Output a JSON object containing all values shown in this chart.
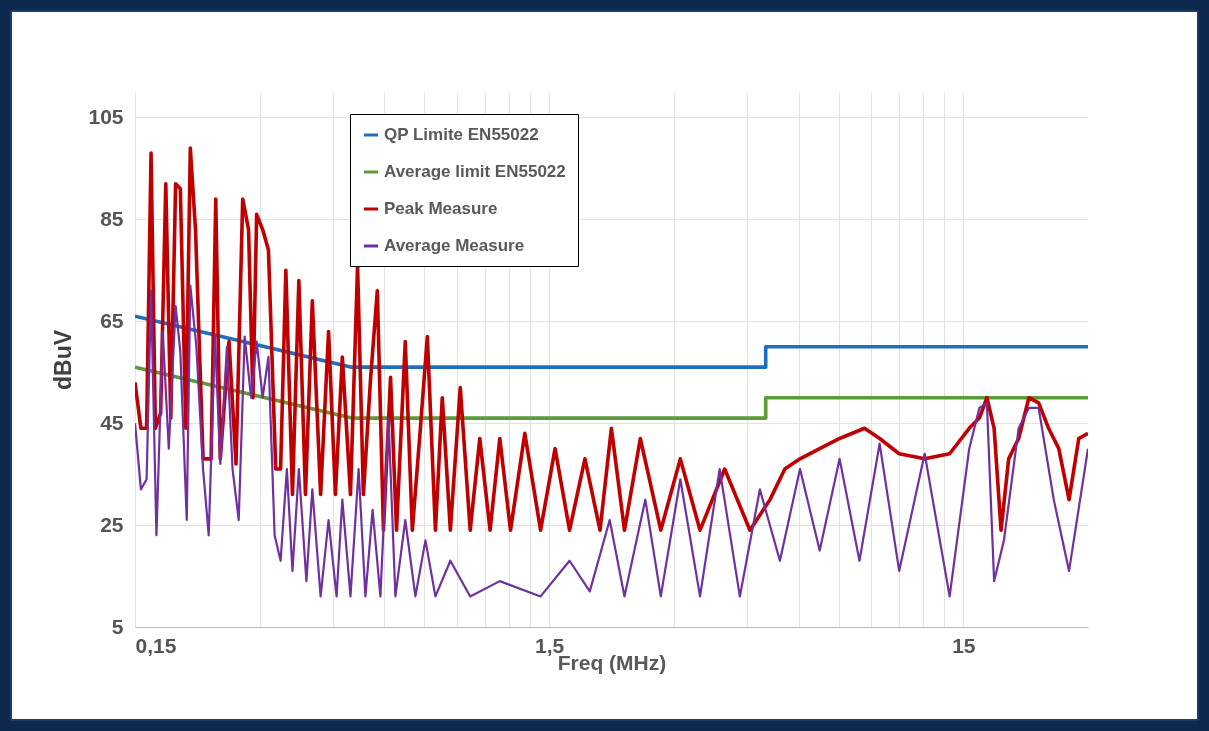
{
  "chart_data": {
    "type": "line",
    "xlabel": "Freq (MHz)",
    "ylabel": "dBuV",
    "log": "x",
    "grid": true,
    "legend": "top",
    "marker": "none",
    "line_style": "solid",
    "xlim": [
      0.15,
      30
    ],
    "ylim": [
      5,
      110
    ],
    "xticks": [
      {
        "value": 0.15,
        "label": "0,15"
      },
      {
        "value": 0.3,
        "label": null
      },
      {
        "value": 0.45,
        "label": null
      },
      {
        "value": 0.6,
        "label": null
      },
      {
        "value": 0.75,
        "label": null
      },
      {
        "value": 0.9,
        "label": null
      },
      {
        "value": 1.05,
        "label": null
      },
      {
        "value": 1.2,
        "label": null
      },
      {
        "value": 1.35,
        "label": null
      },
      {
        "value": 1.5,
        "label": "1,5"
      },
      {
        "value": 3,
        "label": null
      },
      {
        "value": 4.5,
        "label": null
      },
      {
        "value": 6,
        "label": null
      },
      {
        "value": 7.5,
        "label": null
      },
      {
        "value": 9,
        "label": null
      },
      {
        "value": 10.5,
        "label": null
      },
      {
        "value": 12,
        "label": null
      },
      {
        "value": 13.5,
        "label": null
      },
      15
    ],
    "yticks": [
      5,
      25,
      45,
      65,
      85,
      105
    ],
    "series": [
      {
        "name": "QP Limite EN55022",
        "color": "#1f6fbf",
        "x": [
          0.15,
          0.5,
          5,
          5,
          30
        ],
        "values": [
          66,
          56,
          56,
          60,
          60
        ]
      },
      {
        "name": "Average limit EN55022",
        "color": "#5b9b3a",
        "x": [
          0.15,
          0.5,
          5,
          5,
          30
        ],
        "values": [
          56,
          46,
          46,
          50,
          50
        ]
      },
      {
        "name": "Peak Measure",
        "color": "#c00000",
        "x": [
          0.15,
          0.155,
          0.16,
          0.164,
          0.168,
          0.173,
          0.178,
          0.183,
          0.188,
          0.193,
          0.199,
          0.204,
          0.21,
          0.219,
          0.229,
          0.235,
          0.241,
          0.253,
          0.263,
          0.273,
          0.282,
          0.289,
          0.295,
          0.305,
          0.315,
          0.328,
          0.337,
          0.347,
          0.36,
          0.373,
          0.387,
          0.402,
          0.421,
          0.44,
          0.457,
          0.475,
          0.497,
          0.517,
          0.534,
          0.556,
          0.577,
          0.597,
          0.621,
          0.642,
          0.674,
          0.701,
          0.733,
          0.762,
          0.797,
          0.828,
          0.866,
          0.915,
          0.967,
          1.02,
          1.08,
          1.14,
          1.21,
          1.31,
          1.43,
          1.55,
          1.68,
          1.83,
          1.99,
          2.12,
          2.28,
          2.49,
          2.79,
          3.11,
          3.47,
          3.98,
          4.58,
          5.12,
          5.56,
          6.05,
          6.75,
          7.54,
          8.66,
          9.42,
          10.5,
          12.1,
          13.9,
          15.5,
          16.4,
          17.1,
          17.8,
          18.5,
          19.3,
          20.4,
          21.6,
          22.8,
          24.1,
          25.5,
          27,
          28.5,
          30
        ],
        "values": [
          53,
          44,
          44,
          98,
          44,
          47,
          92,
          46,
          92,
          91,
          44,
          99,
          83,
          38,
          38,
          89,
          38,
          61,
          37,
          89,
          83,
          50,
          86,
          83,
          79,
          36,
          36,
          75,
          31,
          73,
          31,
          69,
          31,
          63,
          31,
          58,
          31,
          76,
          31,
          54,
          71,
          24,
          54,
          24,
          61,
          24,
          44,
          62,
          24,
          50,
          24,
          52,
          24,
          42,
          24,
          42,
          24,
          43,
          24,
          40,
          24,
          38,
          24,
          44,
          24,
          42,
          24,
          38,
          24,
          36,
          24,
          30,
          36,
          38,
          40,
          42,
          44,
          42,
          39,
          38,
          39,
          44,
          46,
          50,
          44,
          24,
          38,
          42,
          50,
          49,
          44,
          40,
          30,
          42,
          43
        ]
      },
      {
        "name": "Average Measure",
        "color": "#7030a0",
        "x": [
          0.15,
          0.155,
          0.16,
          0.164,
          0.169,
          0.175,
          0.181,
          0.188,
          0.193,
          0.2,
          0.204,
          0.211,
          0.219,
          0.226,
          0.234,
          0.241,
          0.25,
          0.258,
          0.267,
          0.276,
          0.286,
          0.295,
          0.305,
          0.315,
          0.326,
          0.337,
          0.349,
          0.36,
          0.373,
          0.389,
          0.402,
          0.421,
          0.44,
          0.46,
          0.475,
          0.497,
          0.52,
          0.54,
          0.562,
          0.587,
          0.614,
          0.638,
          0.674,
          0.713,
          0.754,
          0.797,
          0.866,
          0.967,
          1.14,
          1.43,
          1.68,
          1.88,
          2.1,
          2.28,
          2.56,
          2.79,
          3.11,
          3.47,
          3.87,
          4.33,
          4.84,
          5.41,
          6.05,
          6.75,
          7.54,
          8.42,
          9.42,
          10.5,
          12.1,
          13.9,
          15.5,
          16.4,
          17.1,
          17.8,
          18.8,
          20.4,
          21.6,
          22.8,
          24.8,
          27,
          30
        ],
        "values": [
          45,
          32,
          34,
          71,
          23,
          63,
          40,
          68,
          59,
          26,
          72,
          60,
          36,
          23,
          62,
          37,
          60,
          36,
          26,
          62,
          50,
          61,
          50,
          58,
          23,
          18,
          36,
          16,
          36,
          14,
          32,
          11,
          26,
          11,
          30,
          11,
          36,
          11,
          28,
          11,
          46,
          11,
          26,
          11,
          22,
          11,
          18,
          11,
          14,
          11,
          18,
          12,
          26,
          11,
          30,
          11,
          34,
          11,
          36,
          11,
          32,
          18,
          36,
          20,
          38,
          18,
          41,
          16,
          39,
          11,
          40,
          48,
          49,
          14,
          22,
          44,
          48,
          48,
          30,
          16,
          40
        ]
      }
    ]
  }
}
